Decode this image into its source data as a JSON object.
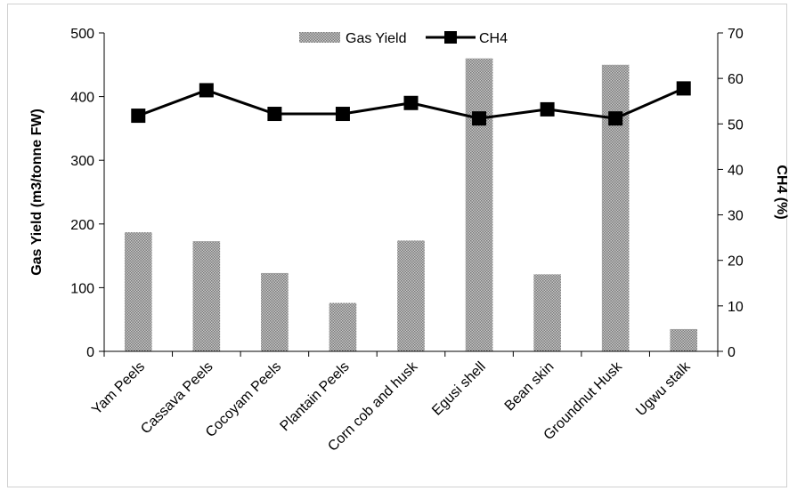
{
  "chart_data": {
    "type": "bar",
    "categories": [
      "Yam Peels",
      "Cassava Peels",
      "Cocoyam Peels",
      "Plantain Peels",
      "Corn cob and husk",
      "Egusi shell",
      "Bean skin",
      "Groundnut Husk",
      "Ugwu stalk"
    ],
    "series": [
      {
        "name": "Gas Yield",
        "type": "bar",
        "axis": "left",
        "values": [
          187,
          173,
          123,
          76,
          174,
          460,
          121,
          450,
          35
        ]
      },
      {
        "name": "CH4",
        "type": "line",
        "axis": "right",
        "values": [
          51.8,
          57.4,
          52.2,
          52.2,
          54.6,
          51.2,
          53.2,
          51.2,
          57.8
        ]
      }
    ],
    "ylabel": "Gas Yield (m3/tonne FW)",
    "ylabel_right": "CH4 (%)",
    "ylim": [
      0,
      500
    ],
    "ylim_right": [
      0,
      70
    ],
    "yticks": [
      "0",
      "100",
      "200",
      "300",
      "400",
      "500"
    ],
    "yticks_right": [
      "0",
      "10",
      "20",
      "30",
      "40",
      "50",
      "60",
      "70"
    ],
    "legend_position": "top-center",
    "grid": false,
    "colors": {
      "bar": "#9a9a9a",
      "line": "#000000"
    }
  }
}
